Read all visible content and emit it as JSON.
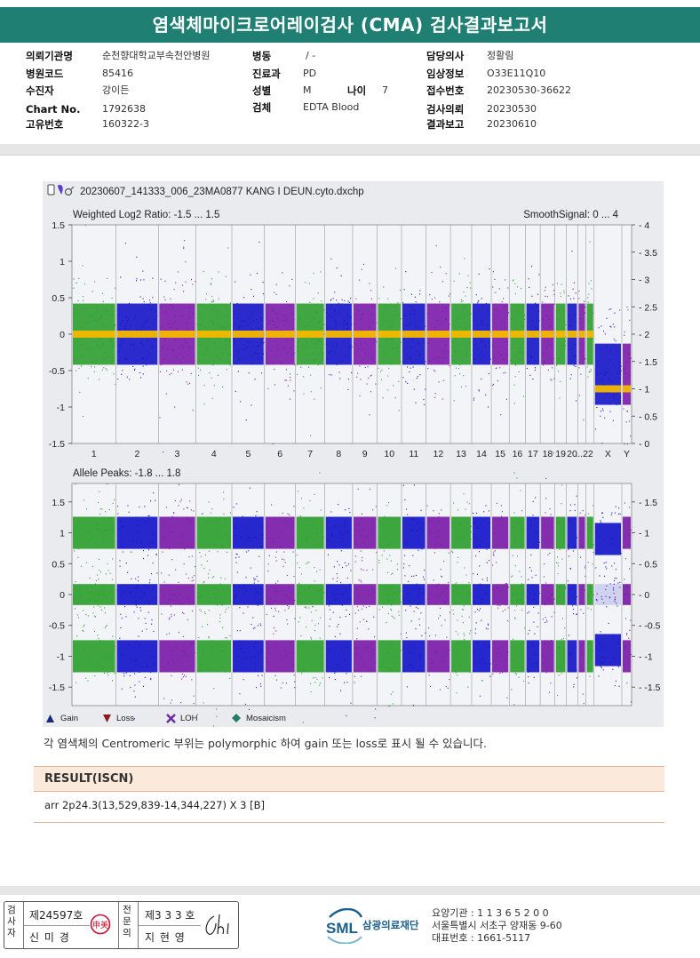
{
  "title": "염색체마이크로어레이검사 (CMA) 검사결과보고서",
  "info": {
    "col1": [
      {
        "label": "의뢰기관명",
        "value": "순천향대학교부속천안병원"
      },
      {
        "label": "병원코드",
        "value": "85416"
      },
      {
        "label": "수진자",
        "value": "강이든"
      },
      {
        "label": "Chart No.",
        "value": "1792638"
      },
      {
        "label": "고유번호",
        "value": "160322-3"
      }
    ],
    "col2": [
      {
        "label": "병동",
        "value": "/ -"
      },
      {
        "label": "진료과",
        "value": "PD"
      },
      {
        "label": "성별",
        "value": "M"
      },
      {
        "label": "검체",
        "value": "EDTA Blood"
      }
    ],
    "age": {
      "label": "나이",
      "value": "7"
    },
    "col3": [
      {
        "label": "담당의사",
        "value": "정활림"
      },
      {
        "label": "임상정보",
        "value": "O33E11Q10"
      },
      {
        "label": "접수번호",
        "value": "20230530-36622"
      },
      {
        "label": "검사의뢰",
        "value": "20230530"
      },
      {
        "label": "결과보고",
        "value": "20230610"
      }
    ]
  },
  "chart": {
    "file_name": "20230607_141333_006_23MA0877 KANG I DEUN.cyto.dxchp",
    "top_label_left": "Weighted Log2 Ratio: -1.5 ... 1.5",
    "top_label_right": "SmoothSignal: 0 ... 4",
    "bottom_label_left": "Allele Peaks: -1.8 ... 1.8",
    "legend": [
      {
        "name": "Gain",
        "symbol": "triangle-up",
        "color": "#1a2a7a"
      },
      {
        "name": "Loss",
        "symbol": "triangle-down",
        "color": "#8b1a1a"
      },
      {
        "name": "LOH",
        "symbol": "x-mark",
        "color": "#6a2aa0"
      },
      {
        "name": "Mosaicism",
        "symbol": "diamond",
        "color": "#2a7a6a"
      }
    ],
    "colors": {
      "green": "#2e9e2e",
      "blue": "#1515c8",
      "purple": "#7b1ba8",
      "orange": "#f5b800"
    }
  },
  "chart_data": [
    {
      "type": "scatter",
      "title": "Weighted Log2 Ratio: -1.5 ... 1.5",
      "ylabel_left": "Weighted Log2 Ratio",
      "ylabel_right": "SmoothSignal",
      "ylim": [
        -1.5,
        1.5
      ],
      "ylim_right": [
        0,
        4
      ],
      "yticks_left": [
        "1.5",
        "1",
        "0.5",
        "0",
        "-0.5",
        "-1",
        "-1.5"
      ],
      "yticks_right": [
        "4",
        "3.5",
        "3",
        "2.5",
        "2",
        "1.5",
        "1",
        "0.5",
        "0"
      ],
      "categories": [
        "1",
        "2",
        "3",
        "4",
        "5",
        "6",
        "7",
        "8",
        "9",
        "10",
        "11",
        "12",
        "13",
        "14",
        "15",
        "16",
        "17",
        "18",
        "19",
        "20",
        "21",
        "22",
        "X",
        "Y"
      ],
      "xtick_labels": [
        "1",
        "2",
        "3",
        "4",
        "5",
        "6",
        "7",
        "8",
        "9",
        "10",
        "11",
        "12",
        "13",
        "14",
        "15",
        "16",
        "17",
        "18",
        "19",
        "20",
        "...22",
        "X",
        "Y"
      ],
      "series": [
        {
          "name": "SmoothSignal",
          "values": [
            2,
            2,
            2,
            2,
            2,
            2,
            2,
            2,
            2,
            2,
            2,
            2,
            2,
            2,
            2,
            2,
            2,
            2,
            2,
            2,
            2,
            2,
            1,
            1
          ]
        }
      ],
      "grid": true
    },
    {
      "type": "scatter",
      "title": "Allele Peaks: -1.8 ... 1.8",
      "ylim": [
        -1.8,
        1.8
      ],
      "yticks_left": [
        "1.5",
        "1",
        "0.5",
        "0",
        "-0.5",
        "-1",
        "-1.5"
      ],
      "yticks_right": [
        "1.5",
        "1",
        "0.5",
        "0",
        "-0.5",
        "-1",
        "-1.5"
      ],
      "peaks": [
        1.0,
        0,
        -1.0
      ],
      "grid": true
    }
  ],
  "footnote": "각 염색체의 Centromeric 부위는 polymorphic 하여 gain 또는 loss로 표시 될 수 있습니다.",
  "result": {
    "heading": "RESULT(ISCN)",
    "value": "arr 2p24.3(13,529,839-14,344,227) X 3 [B]"
  },
  "signatures": {
    "box1_label": "검사자",
    "box1_license": "제24597호",
    "box1_name": "신 미 경",
    "box1_stamp": "申美",
    "box2_label": "전문의",
    "box2_license": "제3 3 3 호",
    "box2_name": "지 현 영"
  },
  "lab": {
    "logo_text": "SML",
    "name": "삼광의료재단",
    "address_lines": [
      "요양기관 : 1 1 3 6 5 2 0 0",
      "서울특별시 서초구 양재동 9-60",
      "대표번호 : 1661-5117"
    ]
  }
}
